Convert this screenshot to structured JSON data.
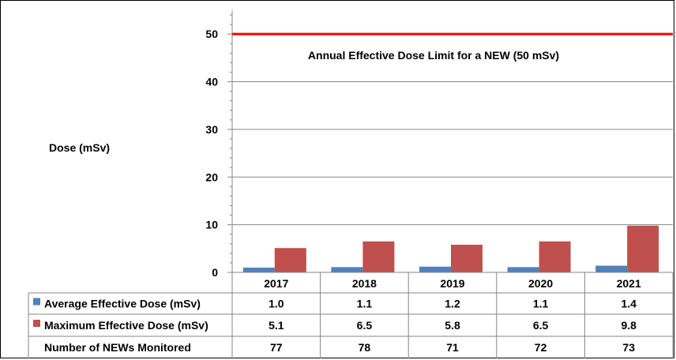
{
  "chart_data": {
    "type": "bar",
    "categories": [
      "2017",
      "2018",
      "2019",
      "2020",
      "2021"
    ],
    "series": [
      {
        "name": "Average Effective Dose (mSv)",
        "values": [
          1.0,
          1.1,
          1.2,
          1.1,
          1.4
        ],
        "display": [
          "1.0",
          "1.1",
          "1.2",
          "1.1",
          "1.4"
        ],
        "color": "#4F81BD"
      },
      {
        "name": "Maximum Effective Dose (mSv)",
        "values": [
          5.1,
          6.5,
          5.8,
          6.5,
          9.8
        ],
        "display": [
          "5.1",
          "6.5",
          "5.8",
          "6.5",
          "9.8"
        ],
        "color": "#C0504D"
      }
    ],
    "extra_rows": [
      {
        "name": "Number of NEWs Monitored",
        "values": [
          "77",
          "78",
          "71",
          "72",
          "73"
        ]
      }
    ],
    "ylabel": "Dose (mSv)",
    "ylim": [
      0,
      55
    ],
    "yticks": [
      0,
      10,
      20,
      30,
      40,
      50
    ],
    "grid": true,
    "reference_line": {
      "value": 50,
      "label": "Annual Effective Dose Limit for a NEW (50 mSv)",
      "color": "#FF0000"
    },
    "legend": "data-table"
  }
}
